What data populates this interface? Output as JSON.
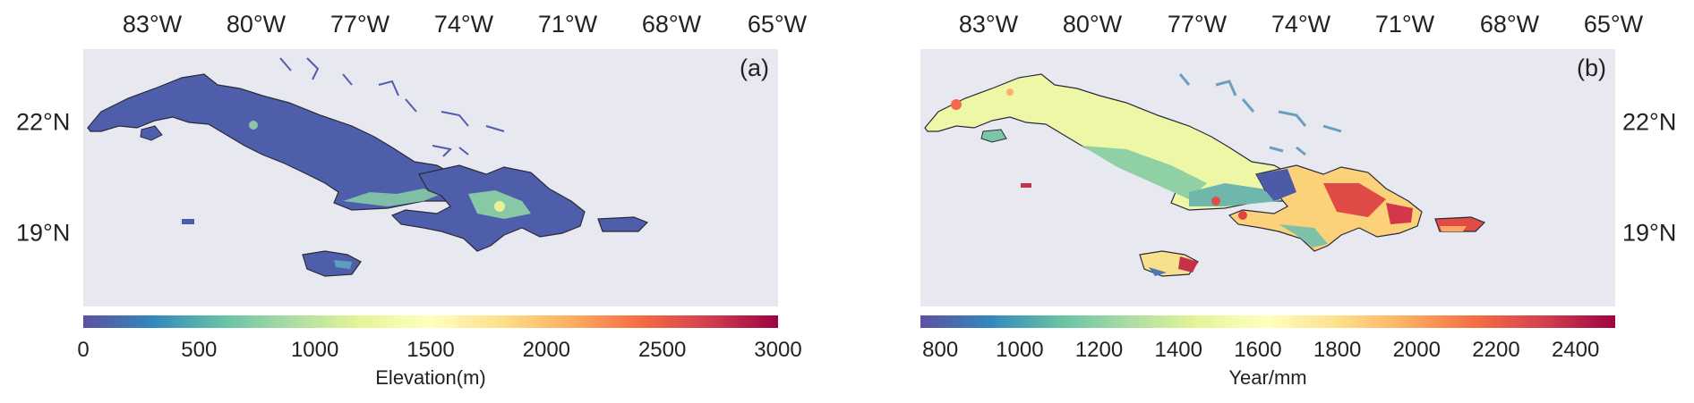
{
  "panel_a": {
    "label": "(a)",
    "lon_ticks": [
      "83°W",
      "80°W",
      "77°W",
      "74°W",
      "71°W",
      "68°W",
      "65°W"
    ],
    "lat_ticks": [
      "22°N",
      "19°N"
    ],
    "colorbar": {
      "ticks": [
        "0",
        "500",
        "1000",
        "1500",
        "2000",
        "2500",
        "3000"
      ],
      "title": "Elevation(m)",
      "min": 0,
      "max": 3000
    }
  },
  "panel_b": {
    "label": "(b)",
    "lon_ticks": [
      "83°W",
      "80°W",
      "77°W",
      "74°W",
      "71°W",
      "68°W",
      "65°W"
    ],
    "lat_ticks": [
      "22°N",
      "19°N"
    ],
    "colorbar": {
      "ticks": [
        "800",
        "1000",
        "1200",
        "1400",
        "1600",
        "1800",
        "2000",
        "2200",
        "2400"
      ],
      "title": "Year/mm",
      "min": 750,
      "max": 2500
    }
  },
  "colors": {
    "map_background": "#e8e8f0",
    "spectral_low": "#5e4fa2",
    "spectral_high": "#9e0142"
  }
}
